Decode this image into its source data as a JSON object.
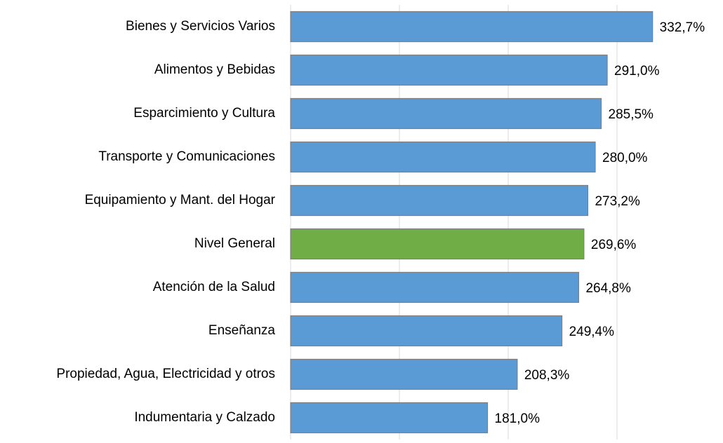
{
  "chart_data": {
    "type": "bar",
    "orientation": "horizontal",
    "categories": [
      "Bienes y Servicios Varios",
      "Alimentos y Bebidas",
      "Esparcimiento y Cultura",
      "Transporte y Comunicaciones",
      "Equipamiento y Mant. del Hogar",
      "Nivel General",
      "Atención de la Salud",
      "Enseñanza",
      "Propiedad, Agua, Electricidad y otros",
      "Indumentaria y Calzado"
    ],
    "values": [
      332.7,
      291.0,
      285.5,
      280.0,
      273.2,
      269.6,
      264.8,
      249.4,
      208.3,
      181.0
    ],
    "value_labels": [
      "332,7%",
      "291,0%",
      "285,5%",
      "280,0%",
      "273,2%",
      "269,6%",
      "264,8%",
      "249,4%",
      "208,3%",
      "181,0%"
    ],
    "colors": [
      "#5b9bd5",
      "#5b9bd5",
      "#5b9bd5",
      "#5b9bd5",
      "#5b9bd5",
      "#70ad47",
      "#5b9bd5",
      "#5b9bd5",
      "#5b9bd5",
      "#5b9bd5"
    ],
    "xlim": [
      0,
      400
    ],
    "xticks": [
      0,
      100,
      200,
      300
    ],
    "grid": true
  }
}
